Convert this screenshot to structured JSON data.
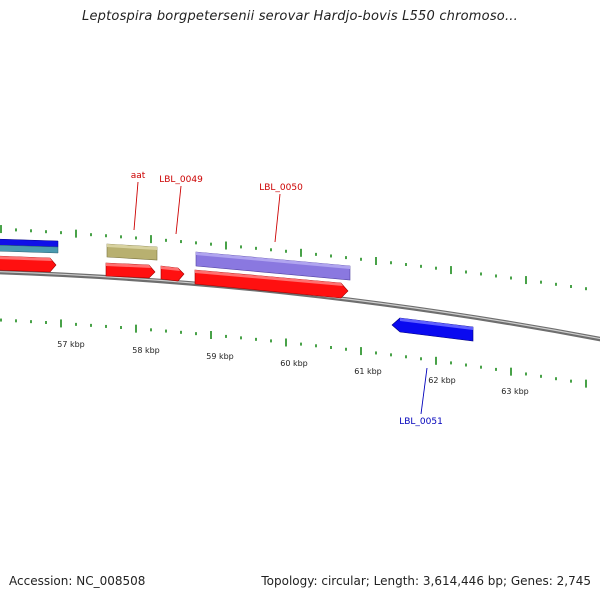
{
  "title": "Leptospira borgpetersenii serovar Hardjo-bovis L550 chromoso...",
  "footer": {
    "accession": "Accession: NC_008508",
    "summary": "Topology: circular; Length: 3,614,446 bp; Genes: 2,745"
  },
  "colors": {
    "backbone": "#8a8a8a",
    "tick": "#1a8a1a",
    "forward_cds": "#ff1010",
    "label_forward": "#cc0000",
    "label_reverse": "#0000bb",
    "blue_gene": "#0a0af0",
    "purple_gene": "#8a78e0",
    "khaki_gene": "#b8b070",
    "teal_gene": "#4a9ab0"
  },
  "kbp_labels": [
    "57 kbp",
    "58 kbp",
    "59 kbp",
    "60 kbp",
    "61 kbp",
    "62 kbp",
    "63 kbp"
  ],
  "gene_labels": {
    "aat": "aat",
    "lbl_0049": "LBL_0049",
    "lbl_0050": "LBL_0050",
    "lbl_0051": "LBL_0051"
  }
}
